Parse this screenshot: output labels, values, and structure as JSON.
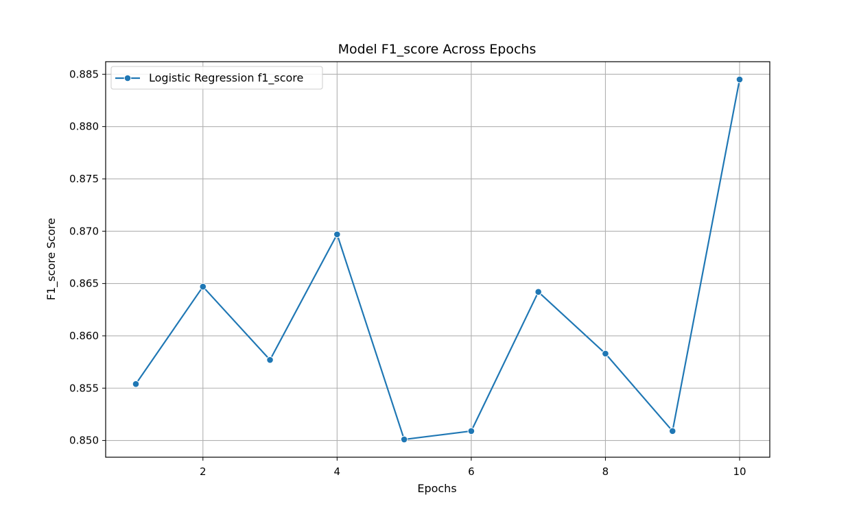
{
  "chart_data": {
    "type": "line",
    "title": "Model F1_score Across Epochs",
    "xlabel": "Epochs",
    "ylabel": "F1_score Score",
    "x": [
      1,
      2,
      3,
      4,
      5,
      6,
      7,
      8,
      9,
      10
    ],
    "series": [
      {
        "name": "Logistic Regression f1_score",
        "color": "#1f77b4",
        "marker": "circle",
        "values": [
          0.8554,
          0.8647,
          0.8577,
          0.8697,
          0.8501,
          0.8509,
          0.8642,
          0.8583,
          0.8509,
          0.8845
        ]
      }
    ],
    "xlim": [
      0.55,
      10.45
    ],
    "ylim": [
      0.8484,
      0.8862
    ],
    "xticks": [
      2,
      4,
      6,
      8,
      10
    ],
    "xtick_labels": [
      "2",
      "4",
      "6",
      "8",
      "10"
    ],
    "yticks": [
      0.85,
      0.855,
      0.86,
      0.865,
      0.87,
      0.875,
      0.88,
      0.885
    ],
    "ytick_labels": [
      "0.850",
      "0.855",
      "0.860",
      "0.865",
      "0.870",
      "0.875",
      "0.880",
      "0.885"
    ],
    "grid": true,
    "legend_position": "top-left"
  }
}
